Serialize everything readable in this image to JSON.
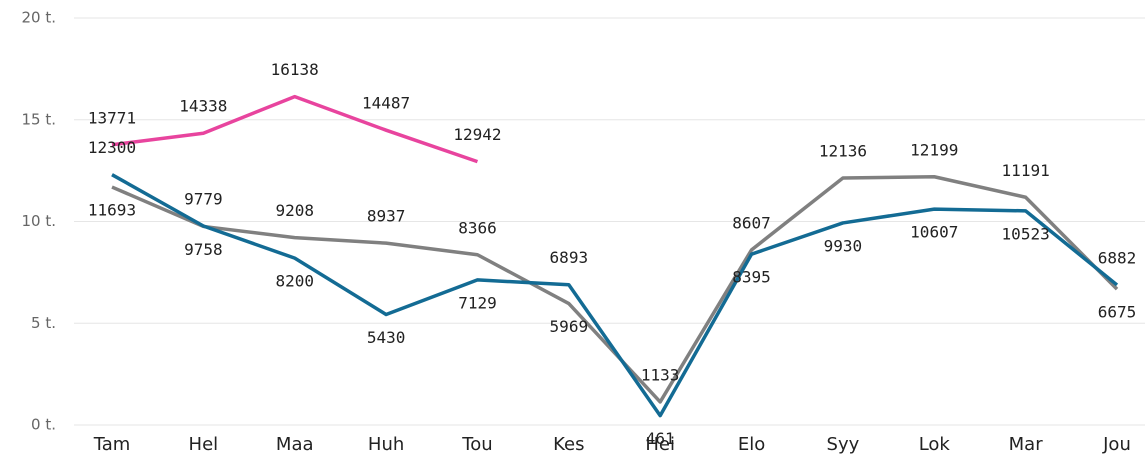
{
  "chart_data": {
    "type": "line",
    "categories": [
      "Tam",
      "Hel",
      "Maa",
      "Huh",
      "Tou",
      "Kes",
      "Hei",
      "Elo",
      "Syy",
      "Lok",
      "Mar",
      "Jou"
    ],
    "series": [
      {
        "color": "#808080",
        "values": [
          11693,
          9758,
          9208,
          8937,
          8366,
          5969,
          1133,
          8607,
          12136,
          12199,
          11191,
          6675
        ]
      },
      {
        "color": "#136b94",
        "values": [
          12300,
          9779,
          8200,
          5430,
          7129,
          6893,
          461,
          8395,
          9930,
          10607,
          10523,
          6882
        ]
      },
      {
        "color": "#e8449e",
        "values": [
          13771,
          14338,
          16138,
          14487,
          12942,
          null,
          null,
          null,
          null,
          null,
          null,
          null
        ]
      }
    ],
    "ylim": [
      0,
      20000
    ],
    "yticks": [
      {
        "value": 0,
        "label": "0 t."
      },
      {
        "value": 5000,
        "label": "5 t."
      },
      {
        "value": 10000,
        "label": "10 t."
      },
      {
        "value": 15000,
        "label": "15 t."
      },
      {
        "value": 20000,
        "label": "20 t."
      }
    ],
    "grid": true
  }
}
